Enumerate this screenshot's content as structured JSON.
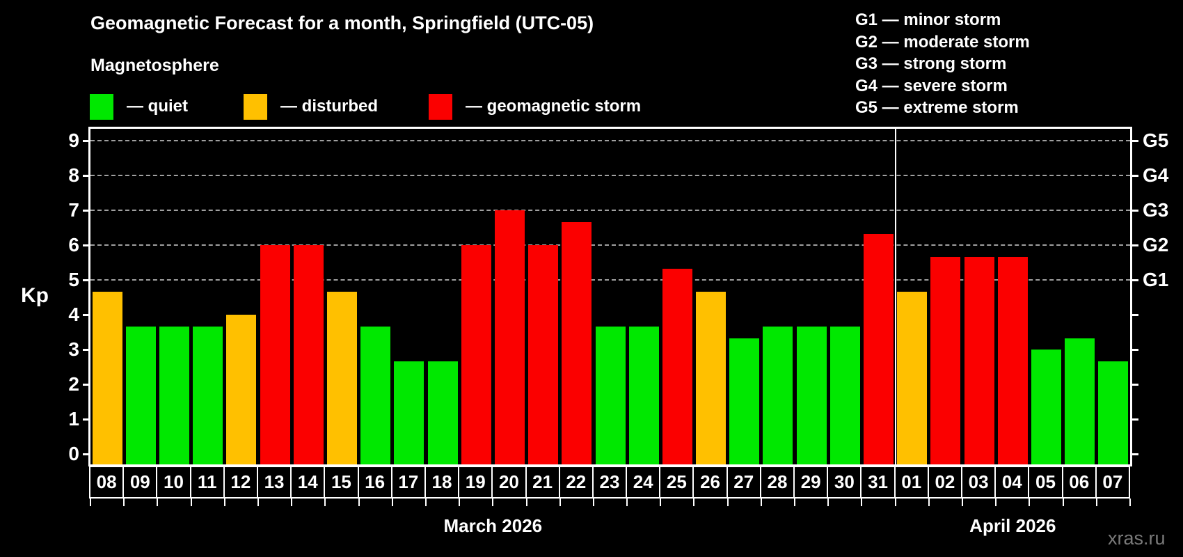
{
  "header": {
    "title": "Geomagnetic Forecast for a month, Springfield (UTC-05)",
    "subtitle": "Magnetosphere"
  },
  "legend": {
    "items": [
      {
        "key": "quiet",
        "label": "— quiet",
        "color": "#00e800"
      },
      {
        "key": "disturbed",
        "label": "— disturbed",
        "color": "#ffc000"
      },
      {
        "key": "storm",
        "label": "— geomagnetic storm",
        "color": "#fb0000"
      }
    ]
  },
  "g_legend": [
    "G1 — minor storm",
    "G2 — moderate storm",
    "G3 — strong storm",
    "G4 — severe storm",
    "G5 — extreme storm"
  ],
  "watermark": "xras.ru",
  "chart_data": {
    "type": "bar",
    "title": "Geomagnetic Forecast for a month, Springfield (UTC-05)",
    "xlabel": "",
    "ylabel": "Kp",
    "ylim": [
      0,
      9
    ],
    "y_ticks": [
      0,
      1,
      2,
      3,
      4,
      5,
      6,
      7,
      8,
      9
    ],
    "grid_levels_kp": [
      5,
      6,
      7,
      8,
      9
    ],
    "grid_on": true,
    "right_axis_ticks": [
      {
        "kp": 5,
        "label": "G1"
      },
      {
        "kp": 6,
        "label": "G2"
      },
      {
        "kp": 7,
        "label": "G3"
      },
      {
        "kp": 8,
        "label": "G4"
      },
      {
        "kp": 9,
        "label": "G5"
      }
    ],
    "status_colors": {
      "quiet": "#00e800",
      "disturbed": "#ffc000",
      "storm": "#fb0000"
    },
    "month_groups": [
      {
        "label": "March 2026",
        "count": 24
      },
      {
        "label": "April 2026",
        "count": 7
      }
    ],
    "categories": [
      "08",
      "09",
      "10",
      "11",
      "12",
      "13",
      "14",
      "15",
      "16",
      "17",
      "18",
      "19",
      "20",
      "21",
      "22",
      "23",
      "24",
      "25",
      "26",
      "27",
      "28",
      "29",
      "30",
      "31",
      "01",
      "02",
      "03",
      "04",
      "05",
      "06",
      "07"
    ],
    "values": [
      4.67,
      3.67,
      3.67,
      3.67,
      4.0,
      6.0,
      6.0,
      4.67,
      3.67,
      2.67,
      2.67,
      6.0,
      7.0,
      6.0,
      6.67,
      3.67,
      3.67,
      5.33,
      4.67,
      3.33,
      3.67,
      3.67,
      3.67,
      6.33,
      4.67,
      5.67,
      5.67,
      5.67,
      3.0,
      3.33,
      2.67
    ],
    "statuses": [
      "disturbed",
      "quiet",
      "quiet",
      "quiet",
      "disturbed",
      "storm",
      "storm",
      "disturbed",
      "quiet",
      "quiet",
      "quiet",
      "storm",
      "storm",
      "storm",
      "storm",
      "quiet",
      "quiet",
      "storm",
      "disturbed",
      "quiet",
      "quiet",
      "quiet",
      "quiet",
      "storm",
      "disturbed",
      "storm",
      "storm",
      "storm",
      "quiet",
      "quiet",
      "quiet"
    ]
  }
}
